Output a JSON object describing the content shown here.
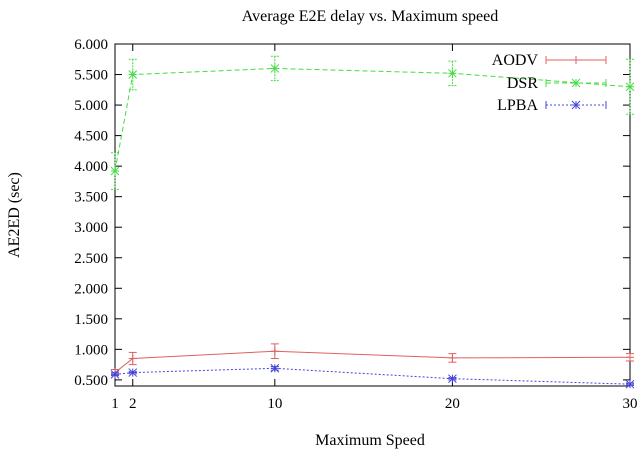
{
  "chart_data": {
    "type": "line",
    "title": "Average E2E delay vs. Maximum speed",
    "xlabel": "Maximum Speed",
    "ylabel": "AE2ED (sec)",
    "xlim": [
      1,
      30
    ],
    "ylim": [
      0.4,
      6.0
    ],
    "x_ticks": [
      1,
      2,
      10,
      20,
      30
    ],
    "x_tick_labels": [
      "1",
      "2",
      "10",
      "20",
      "30"
    ],
    "y_ticks": [
      0.5,
      1.0,
      1.5,
      2.0,
      2.5,
      3.0,
      3.5,
      4.0,
      4.5,
      5.0,
      5.5,
      6.0
    ],
    "y_tick_labels": [
      "0.500",
      "1.000",
      "1.500",
      "2.000",
      "2.500",
      "3.000",
      "3.500",
      "4.000",
      "4.500",
      "5.000",
      "5.500",
      "6.000"
    ],
    "legend_position": "top-right",
    "grid": false,
    "series": [
      {
        "name": "AODV",
        "color": "#e06060",
        "marker": "plus",
        "dash": "solid",
        "x": [
          1,
          2,
          10,
          20,
          30
        ],
        "y": [
          0.62,
          0.85,
          0.97,
          0.86,
          0.87
        ],
        "err": [
          0.05,
          0.1,
          0.12,
          0.07,
          0.06
        ]
      },
      {
        "name": "DSR",
        "color": "#44dd44",
        "marker": "star",
        "dash": "dashed",
        "x": [
          1,
          2,
          10,
          20,
          30
        ],
        "y": [
          3.92,
          5.5,
          5.6,
          5.52,
          5.3
        ],
        "err": [
          0.3,
          0.25,
          0.2,
          0.2,
          0.45
        ]
      },
      {
        "name": "LPBA",
        "color": "#4444dd",
        "marker": "asterisk",
        "dash": "dotted",
        "x": [
          1,
          2,
          10,
          20,
          30
        ],
        "y": [
          0.59,
          0.62,
          0.69,
          0.52,
          0.43
        ],
        "err": [
          0.02,
          0.02,
          0.03,
          0.02,
          0.02
        ]
      }
    ]
  }
}
